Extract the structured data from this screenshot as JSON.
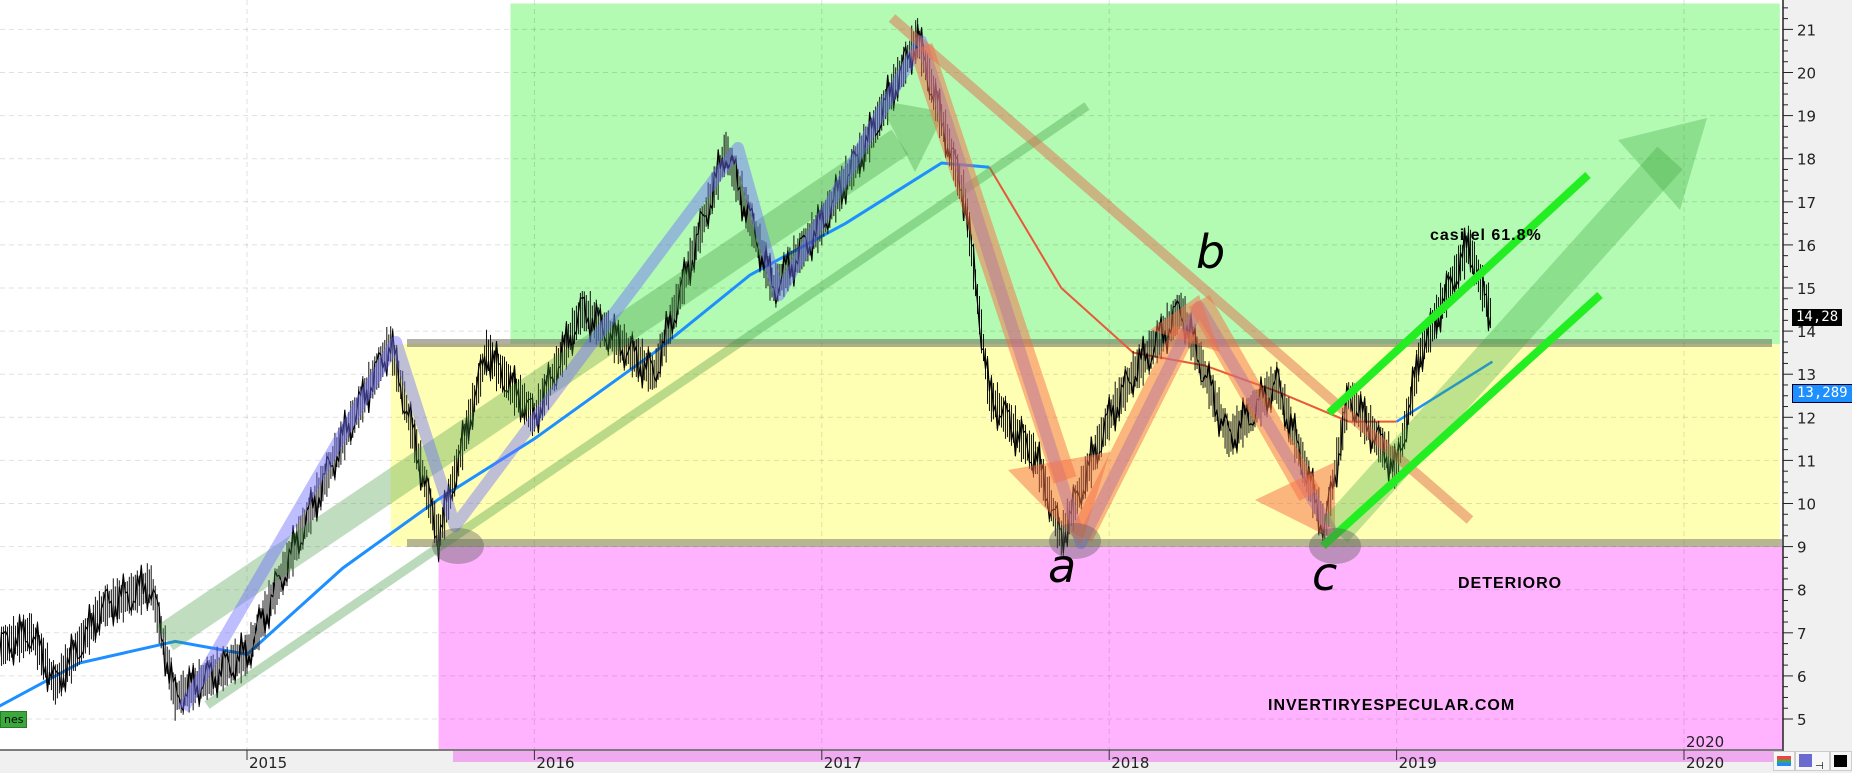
{
  "chart_data": {
    "type": "line",
    "title": "",
    "xlabel": "",
    "ylabel": "",
    "ylim": [
      4.3,
      21.6
    ],
    "xlim": [
      "2014-02",
      "2020-06"
    ],
    "grid": true,
    "y_ticks": [
      5,
      6,
      7,
      8,
      9,
      10,
      11,
      12,
      13,
      14,
      15,
      16,
      17,
      18,
      19,
      20,
      21
    ],
    "x_ticks": [
      "2015",
      "2016",
      "2017",
      "2018",
      "2019",
      "2020"
    ],
    "price": {
      "dates": [
        "2014-02",
        "2014-04",
        "2014-05",
        "2014-07",
        "2014-09",
        "2014-10",
        "2015-01",
        "2015-03",
        "2015-05",
        "2015-07",
        "2015-09",
        "2015-11",
        "2016-01",
        "2016-03",
        "2016-06",
        "2016-09",
        "2016-11",
        "2017-01",
        "2017-03",
        "2017-05",
        "2017-07",
        "2017-08",
        "2017-10",
        "2017-11",
        "2018-01",
        "2018-02",
        "2018-04",
        "2018-06",
        "2018-08",
        "2018-10",
        "2018-11",
        "2019-01",
        "2019-02",
        "2019-04",
        "2019-05"
      ],
      "values": [
        6.5,
        7.0,
        5.8,
        7.6,
        8.1,
        5.5,
        6.5,
        9.0,
        11.5,
        13.7,
        9.2,
        13.5,
        12.0,
        14.5,
        13.0,
        18.2,
        15.0,
        16.5,
        18.5,
        20.8,
        17.0,
        12.5,
        11.0,
        9.2,
        12.0,
        13.0,
        14.5,
        11.5,
        12.8,
        9.4,
        12.5,
        10.8,
        13.5,
        16.0,
        14.28
      ]
    },
    "ma_rising": {
      "color": "#1e8fff",
      "dates": [
        "2014-02",
        "2014-06",
        "2014-10",
        "2015-01",
        "2015-05",
        "2015-09",
        "2016-01",
        "2016-06",
        "2016-10",
        "2017-02",
        "2017-06",
        "2017-08"
      ],
      "values": [
        5.1,
        6.3,
        6.8,
        6.5,
        8.5,
        10.1,
        11.5,
        13.5,
        15.3,
        16.5,
        17.9,
        17.8
      ]
    },
    "ma_falling": {
      "color": "#e8583a",
      "dates": [
        "2017-08",
        "2017-11",
        "2018-02",
        "2018-05",
        "2018-08",
        "2018-11",
        "2019-01"
      ],
      "values": [
        17.8,
        15.0,
        13.5,
        13.2,
        12.6,
        11.9,
        11.9
      ]
    },
    "ma_recovering": {
      "color": "#1e8fff",
      "dates": [
        "2019-01",
        "2019-05"
      ],
      "values": [
        11.9,
        13.289
      ]
    },
    "zones": [
      {
        "color": "#b3fab3",
        "from": "2015-12",
        "to": "2020-05",
        "low": 13.7,
        "high": 21.6
      },
      {
        "color": "#ffffb3",
        "from": "2015-07",
        "to": "2020-05",
        "low": 9,
        "high": 13.7
      },
      {
        "color": "#ffb3ff",
        "from": "2015-09",
        "to": "2020-06",
        "low": 4.3,
        "high": 9
      }
    ],
    "levels": [
      13.7,
      9
    ],
    "last_price_label": "14,28",
    "ma_label": "13,289",
    "annotations": {
      "fib": "casi el 61.8%",
      "zone_low": "DETERIORO",
      "watermark": "INVERTIRYESPECULAR.COM",
      "wave_a": "a",
      "wave_b": "b",
      "wave_c": "c"
    },
    "inner_year_label": "2020",
    "badge": "nes"
  },
  "colors": {
    "price": "#000000",
    "axis_bg": "#f0f0f0",
    "last_price_bg": "#000000",
    "ma_bg": "#1e8fff"
  }
}
